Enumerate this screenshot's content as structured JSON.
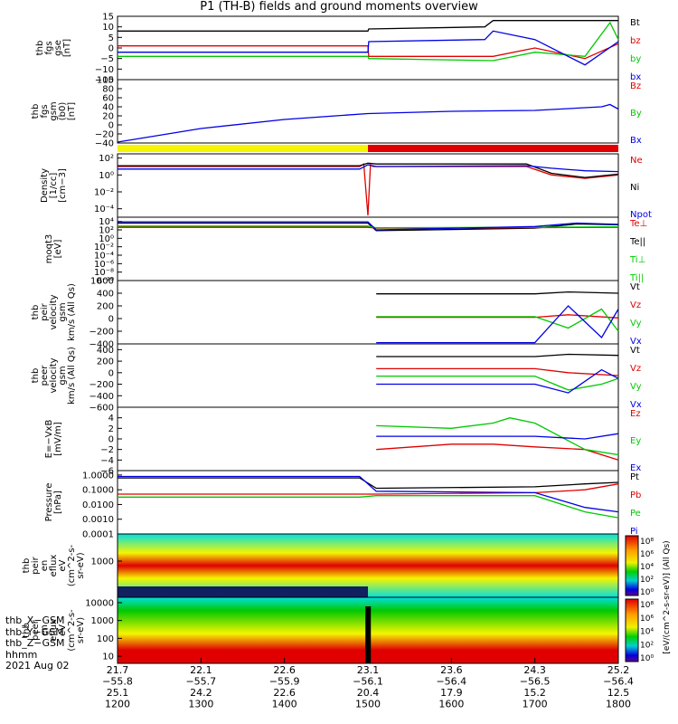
{
  "title": "P1 (TH-B) fields and ground moments overview",
  "date": "2021 Aug 02",
  "colors": {
    "black": "#000000",
    "red": "#e00000",
    "green": "#00c800",
    "blue": "#0000e6",
    "yellow": "#f5f500",
    "cyan": "#00e0e0",
    "orange": "#ff9900"
  },
  "chart_data": [
    {
      "type": "line",
      "name": "panel-fgs",
      "ylabel": [
        "thb",
        "fgs",
        "gse",
        "[nT]"
      ],
      "ylim": [
        -15,
        15
      ],
      "yticks": [
        "15",
        "10",
        "5",
        "0",
        "−5",
        "−10",
        "−15"
      ],
      "tick_values": [
        15,
        10,
        5,
        0,
        -5,
        -10,
        -15
      ],
      "series": [
        {
          "name": "Bt",
          "color": "black",
          "x": [
            1200,
            1500,
            1501,
            1640,
            1650,
            1800
          ],
          "y": [
            8,
            8,
            9,
            10,
            13,
            13
          ]
        },
        {
          "name": "bz",
          "color": "red",
          "x": [
            1200,
            1500,
            1501,
            1650,
            1700,
            1760,
            1800
          ],
          "y": [
            1,
            1,
            -4,
            -4,
            0,
            -5,
            2
          ]
        },
        {
          "name": "by",
          "color": "green",
          "x": [
            1200,
            1500,
            1501,
            1650,
            1700,
            1760,
            1790,
            1800
          ],
          "y": [
            -4,
            -4,
            -5,
            -6,
            -2,
            -4,
            12,
            4
          ]
        },
        {
          "name": "bx",
          "color": "blue",
          "x": [
            1200,
            1500,
            1501,
            1640,
            1650,
            1700,
            1760,
            1800
          ],
          "y": [
            -2,
            -2,
            3,
            4,
            8,
            4,
            -8,
            3
          ]
        }
      ]
    },
    {
      "type": "line",
      "name": "panel-fgs-gsm",
      "ylabel": [
        "thb",
        "fgs",
        "gsm",
        "(b0)",
        "[nT]"
      ],
      "ylim": [
        -40,
        100
      ],
      "yticks": [
        "100",
        "80",
        "60",
        "40",
        "20",
        "0",
        "−20",
        "−40"
      ],
      "tick_values": [
        100,
        80,
        60,
        40,
        20,
        0,
        -20,
        -40
      ],
      "labels_only": [
        "Bz",
        "By"
      ],
      "series": [
        {
          "name": "Bx",
          "color": "blue",
          "x": [
            1200,
            1300,
            1400,
            1500,
            1600,
            1700,
            1780,
            1790,
            1800
          ],
          "y": [
            -38,
            -8,
            12,
            25,
            30,
            32,
            40,
            45,
            35
          ]
        }
      ]
    },
    {
      "type": "bar",
      "name": "region-bar",
      "series": [
        {
          "name": "region",
          "color": "yellow",
          "x": [
            1200,
            1500
          ]
        },
        {
          "name": "region",
          "color": "red",
          "x": [
            1500,
            1800
          ]
        }
      ]
    },
    {
      "type": "line",
      "name": "panel-density",
      "scale": "log",
      "ylabel": [
        "Density",
        "[1/cc]",
        "[cm−3]"
      ],
      "ylim": [
        -5,
        2.5
      ],
      "yticks": [
        "10²",
        "10⁰",
        "10⁻²",
        "10⁻⁴"
      ],
      "tick_values": [
        2,
        0,
        -2,
        -4
      ],
      "series": [
        {
          "name": "Ne",
          "color": "red",
          "x": [
            1200,
            1490,
            1495,
            1500,
            1503,
            1506,
            1510,
            1690,
            1720,
            1760,
            1800
          ],
          "y": [
            1.0,
            1.0,
            1.3,
            -4.8,
            1.2,
            1.0,
            1.0,
            1.0,
            0.0,
            -0.4,
            0.0
          ]
        },
        {
          "name": "Ni",
          "color": "black",
          "x": [
            1200,
            1490,
            1500,
            1510,
            1690,
            1720,
            1760,
            1800
          ],
          "y": [
            1.1,
            1.1,
            1.4,
            1.3,
            1.3,
            0.2,
            -0.3,
            0.1
          ]
        },
        {
          "name": "Npot",
          "color": "blue",
          "x": [
            1200,
            1490,
            1500,
            1510,
            1690,
            1720,
            1760,
            1800
          ],
          "y": [
            0.7,
            0.7,
            1.2,
            1.0,
            1.1,
            0.8,
            0.5,
            0.4
          ]
        }
      ],
      "labels_only": []
    },
    {
      "type": "line",
      "name": "panel-temperature",
      "scale": "log",
      "ylabel": [
        "moqt3",
        "[eV]"
      ],
      "ylim": [
        -10,
        5
      ],
      "yticks": [
        "10⁴",
        "10²",
        "10⁰",
        "10⁻²",
        "10⁻⁴",
        "10⁻⁶",
        "10⁻⁸",
        "10⁻¹⁰"
      ],
      "tick_values": [
        4,
        2,
        0,
        -2,
        -4,
        -6,
        -8,
        -10
      ],
      "labels_only": [
        "Te⊥",
        "Te||",
        "Ti⊥",
        "Ti||"
      ],
      "series": [
        {
          "name": "Te||",
          "color": "black",
          "x": [
            1200,
            1500,
            1510,
            1700,
            1750,
            1800
          ],
          "y": [
            3.6,
            3.6,
            1.8,
            2.4,
            3.4,
            3.2
          ]
        },
        {
          "name": "Te⊥",
          "color": "red",
          "x": [
            1200,
            1500,
            1510,
            1800
          ],
          "y": [
            2.6,
            2.6,
            2.4,
            2.6
          ]
        },
        {
          "name": "Ti⊥",
          "color": "green",
          "x": [
            1200,
            1500,
            1510,
            1800
          ],
          "y": [
            2.9,
            2.9,
            2.5,
            2.7
          ]
        },
        {
          "name": "Ti||",
          "color": "blue",
          "x": [
            1200,
            1500,
            1510,
            1700,
            1750,
            1800
          ],
          "y": [
            3.9,
            3.9,
            2.0,
            2.8,
            3.6,
            3.3
          ]
        }
      ]
    },
    {
      "type": "line",
      "name": "panel-peir-velocity",
      "ylabel": [
        "thb",
        "peir",
        "velocity",
        "gsm",
        "km/s (All Qs)"
      ],
      "ylim": [
        -400,
        600
      ],
      "yticks": [
        "600",
        "400",
        "200",
        "0",
        "−200",
        "−400"
      ],
      "tick_values": [
        600,
        400,
        200,
        0,
        -200,
        -400
      ],
      "series": [
        {
          "name": "Vt",
          "color": "black",
          "x": [
            1510,
            1700,
            1740,
            1800
          ],
          "y": [
            390,
            390,
            420,
            400
          ]
        },
        {
          "name": "Vz",
          "color": "red",
          "x": [
            1510,
            1700,
            1740,
            1800
          ],
          "y": [
            20,
            20,
            60,
            10
          ]
        },
        {
          "name": "Vy",
          "color": "green",
          "x": [
            1510,
            1700,
            1740,
            1780,
            1800
          ],
          "y": [
            30,
            30,
            -150,
            150,
            -200
          ]
        },
        {
          "name": "Vx",
          "color": "blue",
          "x": [
            1510,
            1700,
            1740,
            1780,
            1800
          ],
          "y": [
            -380,
            -380,
            200,
            -300,
            150
          ]
        }
      ]
    },
    {
      "type": "line",
      "name": "panel-peer-velocity",
      "ylabel": [
        "thb",
        "peer",
        "velocity",
        "gsm",
        "km/s (All Qs)"
      ],
      "ylim": [
        -600,
        500
      ],
      "yticks": [
        "400",
        "200",
        "0",
        "−200",
        "−400",
        "−600"
      ],
      "tick_values": [
        400,
        200,
        0,
        -200,
        -400,
        -600
      ],
      "series": [
        {
          "name": "Vt",
          "color": "black",
          "x": [
            1510,
            1700,
            1740,
            1800
          ],
          "y": [
            280,
            280,
            320,
            300
          ]
        },
        {
          "name": "Vz",
          "color": "red",
          "x": [
            1510,
            1700,
            1740,
            1800
          ],
          "y": [
            70,
            70,
            0,
            -50
          ]
        },
        {
          "name": "Vy",
          "color": "green",
          "x": [
            1510,
            1700,
            1740,
            1780,
            1800
          ],
          "y": [
            -60,
            -60,
            -300,
            -200,
            -100
          ]
        },
        {
          "name": "Vx",
          "color": "blue",
          "x": [
            1510,
            1700,
            1740,
            1780,
            1800
          ],
          "y": [
            -200,
            -200,
            -350,
            50,
            -100
          ]
        }
      ]
    },
    {
      "type": "line",
      "name": "panel-e-field",
      "ylabel": [
        "E=−VxB",
        "[mV/m]"
      ],
      "ylim": [
        -6,
        6
      ],
      "yticks": [
        "4",
        "2",
        "0",
        "−2",
        "−4",
        "−6"
      ],
      "tick_values": [
        4,
        2,
        0,
        -2,
        -4,
        -6
      ],
      "series": [
        {
          "name": "Ez",
          "color": "red",
          "x": [
            1510,
            1600,
            1650,
            1700,
            1760,
            1800
          ],
          "y": [
            -2,
            -1,
            -1,
            -1.5,
            -2,
            -4
          ]
        },
        {
          "name": "Ey",
          "color": "green",
          "x": [
            1510,
            1600,
            1650,
            1670,
            1700,
            1760,
            1800
          ],
          "y": [
            2.5,
            2,
            3,
            4,
            3,
            -2,
            -3
          ]
        },
        {
          "name": "Ex",
          "color": "blue",
          "x": [
            1510,
            1600,
            1700,
            1760,
            1800
          ],
          "y": [
            0.5,
            0.5,
            0.5,
            0,
            1
          ]
        }
      ]
    },
    {
      "type": "line",
      "name": "panel-pressure",
      "scale": "log",
      "ylabel": [
        "Pressure",
        "[nPa]"
      ],
      "ylim": [
        -4,
        0.3
      ],
      "yticks": [
        "1.0000",
        "0.1000",
        "0.0100",
        "0.0010",
        "0.0001"
      ],
      "tick_values": [
        0,
        -1,
        -2,
        -3,
        -4
      ],
      "series": [
        {
          "name": "Pt",
          "color": "black",
          "x": [
            1200,
            1490,
            1510,
            1700,
            1760,
            1800
          ],
          "y": [
            -0.2,
            -0.2,
            -0.9,
            -0.8,
            -0.6,
            -0.5
          ]
        },
        {
          "name": "Pb",
          "color": "red",
          "x": [
            1200,
            1490,
            1510,
            1700,
            1760,
            1800
          ],
          "y": [
            -1.3,
            -1.3,
            -1.3,
            -1.2,
            -1.0,
            -0.6
          ]
        },
        {
          "name": "Pe",
          "color": "green",
          "x": [
            1200,
            1490,
            1510,
            1700,
            1760,
            1800
          ],
          "y": [
            -1.5,
            -1.5,
            -1.4,
            -1.4,
            -2.5,
            -2.9
          ]
        },
        {
          "name": "Pi",
          "color": "blue",
          "x": [
            1200,
            1490,
            1510,
            1700,
            1760,
            1800
          ],
          "y": [
            -0.1,
            -0.1,
            -1.1,
            -1.2,
            -2.2,
            -2.5
          ]
        }
      ]
    },
    {
      "type": "heatmap",
      "name": "spectrogram-peir",
      "ylabel": [
        "thb",
        "peir",
        "en",
        "eflux",
        "eV",
        "(cm^2-s-",
        "sr-eV)"
      ],
      "yticks": [
        "1000"
      ],
      "tick_values": [
        3
      ],
      "ylim": [
        1,
        4.5
      ],
      "scale": "log",
      "colorbar": {
        "label": "[eV/(cm^2-s-sr-eV)] (All Qs)",
        "ticks": [
          "10⁸",
          "10⁶",
          "10⁴",
          "10²",
          "10⁰"
        ]
      }
    },
    {
      "type": "heatmap",
      "name": "spectrogram-peer",
      "ylabel": [
        "thb",
        "peer",
        "en",
        "eflux",
        "eV",
        "(cm^2-s-",
        "sr-eV)"
      ],
      "yticks": [
        "10000",
        "1000",
        "100",
        "10"
      ],
      "tick_values": [
        4,
        3,
        2,
        1
      ],
      "ylim": [
        0.6,
        4.3
      ],
      "scale": "log",
      "colorbar": {
        "label": "[eV/(cm^2-s-sr-eV)] (All Qs)",
        "ticks": [
          "10⁸",
          "10⁶",
          "10⁴",
          "10²",
          "10⁰"
        ]
      }
    }
  ],
  "x_axis": {
    "ticks": [
      1200,
      1300,
      1400,
      1500,
      1600,
      1700,
      1800
    ],
    "rows": [
      {
        "label": "thb_X−GSM",
        "values": [
          "21.7",
          "22.1",
          "22.6",
          "23.1",
          "23.6",
          "24.3",
          "25.2"
        ]
      },
      {
        "label": "thb_Y−GSM",
        "values": [
          "−55.8",
          "−55.7",
          "−55.9",
          "−56.1",
          "−56.4",
          "−56.5",
          "−56.4"
        ]
      },
      {
        "label": "thb_Z−GSM",
        "values": [
          "25.1",
          "24.2",
          "22.6",
          "20.4",
          "17.9",
          "15.2",
          "12.5"
        ]
      },
      {
        "label": "hhmm",
        "values": [
          "1200",
          "1300",
          "1400",
          "1500",
          "1600",
          "1700",
          "1800"
        ]
      }
    ]
  }
}
